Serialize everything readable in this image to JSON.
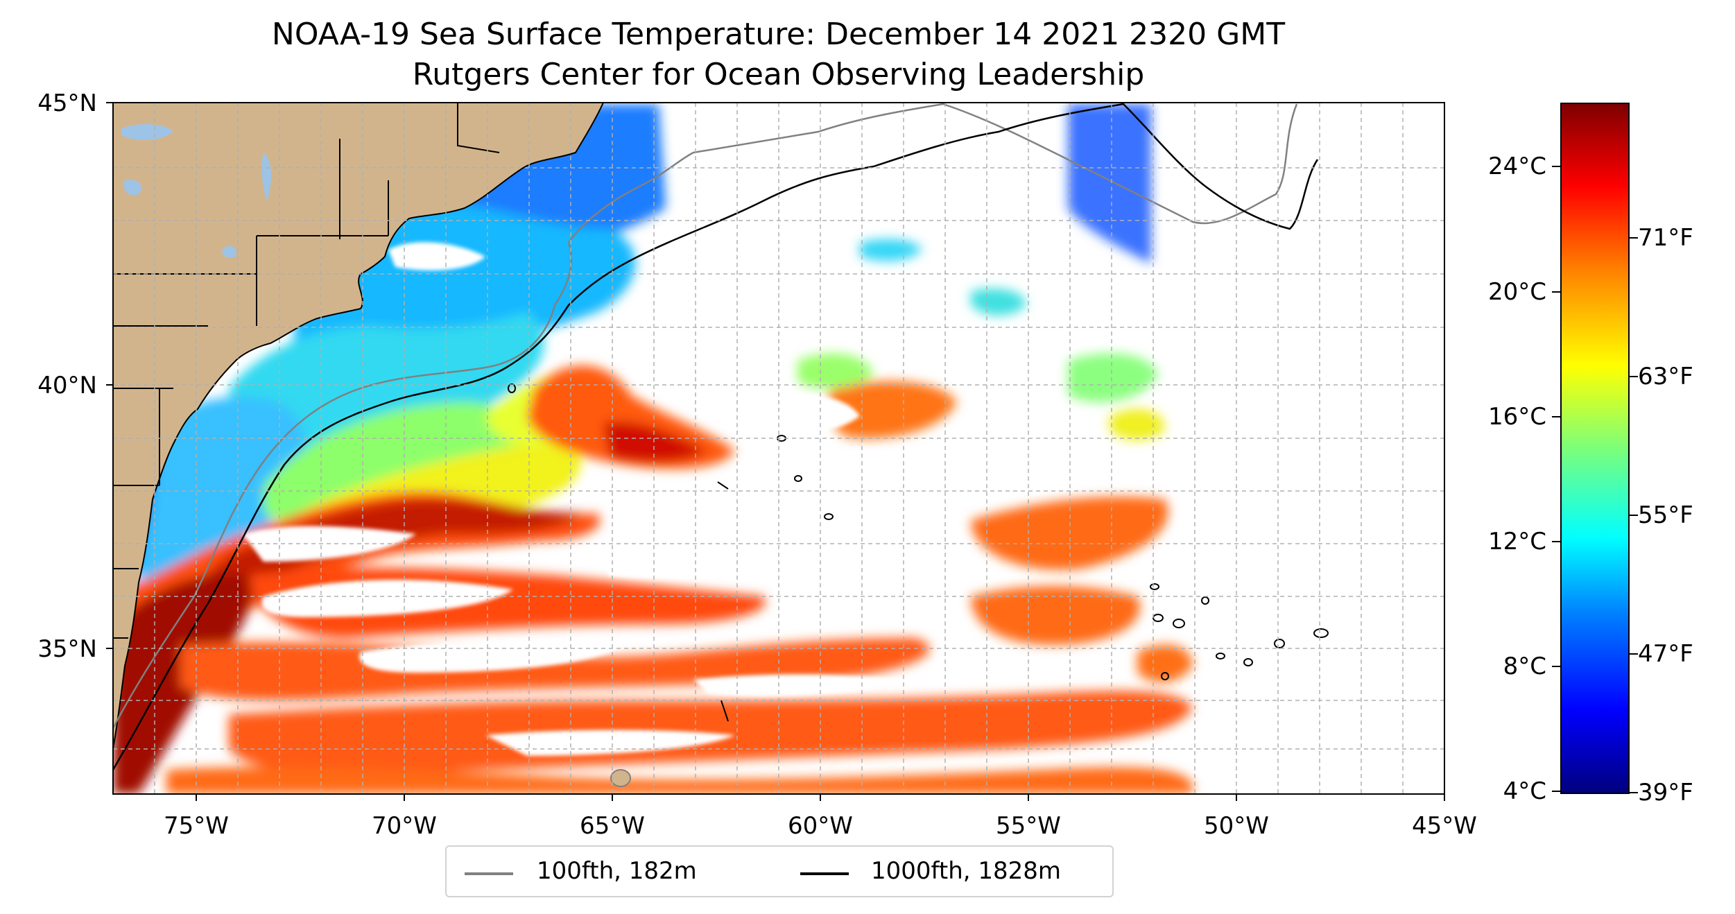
{
  "title": "NOAA-19 Sea Surface Temperature: December 14 2021 2320 GMT",
  "subtitle": "Rutgers Center for Ocean Observing Leadership",
  "map": {
    "lon_range": [
      -77,
      -45
    ],
    "lat_range": [
      32.2,
      45
    ],
    "lat_ticks": [
      "45°N",
      "40°N",
      "35°N"
    ],
    "lon_ticks": [
      "75°W",
      "70°W",
      "65°W",
      "60°W",
      "55°W",
      "50°W",
      "45°W"
    ],
    "land_color": "#d2b48c",
    "water_color": "#9dc3e6",
    "grid": "dashed, on"
  },
  "legend": {
    "items": [
      {
        "label": "100fth, 182m",
        "color": "#808080"
      },
      {
        "label": "1000fth, 1828m",
        "color": "#000000"
      }
    ]
  },
  "colorbar": {
    "colormap": "jet",
    "celsius_ticks": [
      "24°C",
      "20°C",
      "16°C",
      "12°C",
      "8°C",
      "4°C"
    ],
    "fahrenheit_ticks": [
      "71°F",
      "63°F",
      "55°F",
      "47°F",
      "39°F"
    ],
    "range_celsius": [
      3.9,
      25.6
    ]
  }
}
